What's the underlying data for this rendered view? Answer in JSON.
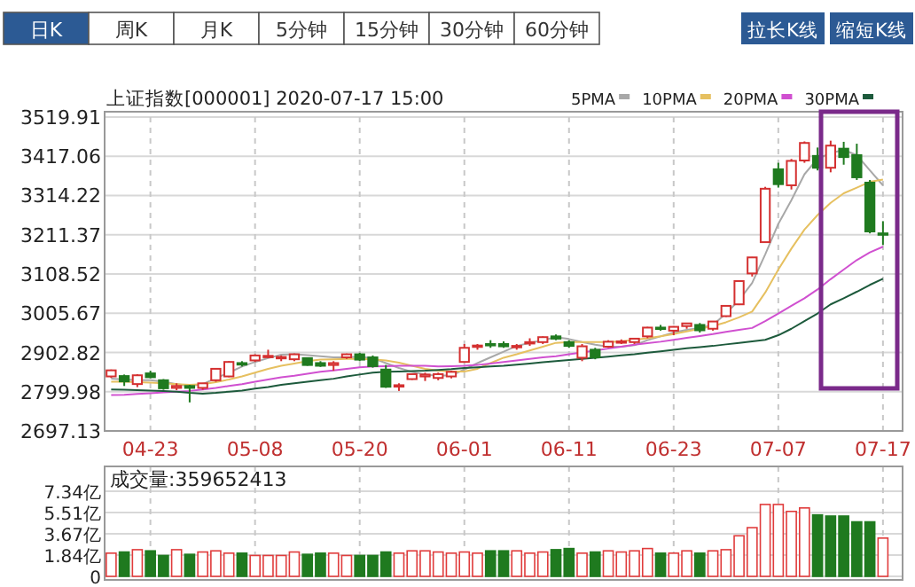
{
  "chart_data": [
    {
      "type": "other",
      "annotations": [
        "日K",
        "周K",
        "月K",
        "5分钟",
        "15分钟",
        "30分钟",
        "60分钟",
        "拉长K线",
        "缩短K线"
      ]
    },
    {
      "type": "candlestick",
      "title": "上证指数[000001] 2020-07-17 15:00",
      "legend": "top right",
      "grid": true,
      "categories": [
        null,
        null,
        null,
        "04-23",
        null,
        null,
        null,
        null,
        null,
        null,
        null,
        "05-08",
        null,
        null,
        null,
        null,
        null,
        null,
        null,
        "05-20",
        null,
        null,
        null,
        null,
        null,
        null,
        null,
        "06-01",
        null,
        null,
        null,
        null,
        null,
        null,
        null,
        "06-11",
        null,
        null,
        null,
        null,
        null,
        null,
        null,
        "06-23",
        null,
        null,
        null,
        null,
        null,
        null,
        null,
        "07-07",
        null,
        null,
        null,
        null,
        null,
        null,
        null,
        "07-17"
      ],
      "ohlc": [
        [
          2840,
          2858,
          2836,
          2856
        ],
        [
          2841,
          2845,
          2815,
          2827
        ],
        [
          2820,
          2846,
          2812,
          2843
        ],
        [
          2848,
          2855,
          2835,
          2838
        ],
        [
          2830,
          2833,
          2805,
          2809
        ],
        [
          2810,
          2822,
          2804,
          2815
        ],
        [
          2815,
          2818,
          2772,
          2810
        ],
        [
          2810,
          2823,
          2805,
          2822
        ],
        [
          2830,
          2862,
          2826,
          2860
        ],
        [
          2840,
          2880,
          2838,
          2878
        ],
        [
          2875,
          2880,
          2866,
          2871
        ],
        [
          2882,
          2898,
          2878,
          2895
        ],
        [
          2894,
          2910,
          2888,
          2894
        ],
        [
          2891,
          2895,
          2880,
          2891
        ],
        [
          2885,
          2900,
          2880,
          2898
        ],
        [
          2888,
          2890,
          2868,
          2870
        ],
        [
          2875,
          2880,
          2865,
          2868
        ],
        [
          2870,
          2880,
          2855,
          2875
        ],
        [
          2890,
          2900,
          2886,
          2898
        ],
        [
          2898,
          2902,
          2880,
          2884
        ],
        [
          2890,
          2895,
          2863,
          2867
        ],
        [
          2858,
          2870,
          2810,
          2813
        ],
        [
          2815,
          2822,
          2802,
          2817
        ],
        [
          2833,
          2848,
          2831,
          2846
        ],
        [
          2840,
          2850,
          2828,
          2845
        ],
        [
          2836,
          2850,
          2830,
          2846
        ],
        [
          2840,
          2855,
          2835,
          2852
        ],
        [
          2878,
          2925,
          2876,
          2915
        ],
        [
          2918,
          2925,
          2910,
          2921
        ],
        [
          2925,
          2935,
          2915,
          2923
        ],
        [
          2925,
          2932,
          2915,
          2919
        ],
        [
          2918,
          2925,
          2910,
          2920
        ],
        [
          2928,
          2940,
          2920,
          2930
        ],
        [
          2930,
          2945,
          2925,
          2943
        ],
        [
          2945,
          2950,
          2935,
          2939
        ],
        [
          2930,
          2935,
          2915,
          2920
        ],
        [
          2889,
          2925,
          2880,
          2919
        ],
        [
          2910,
          2915,
          2885,
          2890
        ],
        [
          2918,
          2935,
          2915,
          2931
        ],
        [
          2930,
          2937,
          2925,
          2932
        ],
        [
          2930,
          2940,
          2925,
          2939
        ],
        [
          2945,
          2970,
          2940,
          2968
        ],
        [
          2968,
          2975,
          2960,
          2965
        ],
        [
          2960,
          2972,
          2948,
          2970
        ],
        [
          2972,
          2980,
          2965,
          2979
        ],
        [
          2975,
          2980,
          2955,
          2961
        ],
        [
          2965,
          2985,
          2960,
          2984
        ],
        [
          2998,
          3026,
          2996,
          3025
        ],
        [
          3029,
          3091,
          3027,
          3090
        ],
        [
          3110,
          3153,
          3102,
          3152
        ],
        [
          3192,
          3337,
          3190,
          3332
        ],
        [
          3383,
          3400,
          3335,
          3344
        ],
        [
          3341,
          3410,
          3330,
          3405
        ],
        [
          3406,
          3456,
          3400,
          3452
        ],
        [
          3418,
          3440,
          3380,
          3387
        ],
        [
          3387,
          3458,
          3375,
          3445
        ],
        [
          3437,
          3455,
          3395,
          3415
        ],
        [
          3420,
          3450,
          3355,
          3362
        ],
        [
          3348,
          3355,
          3215,
          3220
        ],
        [
          3215,
          3247,
          3185,
          3214
        ]
      ],
      "series": [
        {
          "name": "5PMA",
          "type": "line",
          "color": "#a8a8a8",
          "values": [
            2834,
            2832,
            2830,
            2830,
            2826,
            2820,
            2815,
            2820,
            2835,
            2850,
            2866,
            2878,
            2888,
            2897,
            2898,
            2896,
            2893,
            2890,
            2890,
            2892,
            2888,
            2875,
            2862,
            2852,
            2845,
            2842,
            2843,
            2858,
            2875,
            2890,
            2905,
            2920,
            2928,
            2935,
            2943,
            2938,
            2930,
            2923,
            2918,
            2918,
            2922,
            2935,
            2945,
            2955,
            2962,
            2967,
            2975,
            3005,
            3040,
            3085,
            3160,
            3240,
            3302,
            3370,
            3411,
            3425,
            3434,
            3420,
            3380,
            3341
          ]
        },
        {
          "name": "10PMA",
          "type": "line",
          "color": "#e6c060",
          "values": [
            2826,
            2826,
            2825,
            2824,
            2822,
            2820,
            2818,
            2820,
            2825,
            2832,
            2840,
            2850,
            2860,
            2868,
            2874,
            2880,
            2884,
            2885,
            2886,
            2886,
            2885,
            2882,
            2876,
            2868,
            2860,
            2855,
            2853,
            2853,
            2860,
            2875,
            2889,
            2898,
            2908,
            2918,
            2928,
            2930,
            2930,
            2930,
            2930,
            2932,
            2936,
            2940,
            2945,
            2951,
            2958,
            2965,
            2972,
            2982,
            2995,
            3010,
            3060,
            3120,
            3175,
            3225,
            3263,
            3295,
            3320,
            3335,
            3350,
            3356
          ]
        },
        {
          "name": "20PMA",
          "type": "line",
          "color": "#d050d0",
          "values": [
            2791,
            2792,
            2794,
            2796,
            2798,
            2800,
            2802,
            2806,
            2810,
            2815,
            2820,
            2826,
            2832,
            2838,
            2842,
            2847,
            2852,
            2856,
            2860,
            2864,
            2866,
            2867,
            2868,
            2868,
            2868,
            2866,
            2867,
            2868,
            2870,
            2874,
            2878,
            2882,
            2886,
            2890,
            2893,
            2898,
            2903,
            2908,
            2913,
            2918,
            2923,
            2927,
            2931,
            2936,
            2941,
            2946,
            2951,
            2957,
            2962,
            2967,
            2985,
            3005,
            3025,
            3045,
            3068,
            3095,
            3120,
            3145,
            3165,
            3180
          ]
        },
        {
          "name": "30PMA",
          "type": "line",
          "color": "#1d5a3c",
          "values": [
            2806,
            2805,
            2804,
            2803,
            2802,
            2800,
            2797,
            2795,
            2797,
            2800,
            2803,
            2808,
            2812,
            2818,
            2822,
            2826,
            2830,
            2834,
            2840,
            2845,
            2850,
            2852,
            2853,
            2854,
            2855,
            2857,
            2859,
            2862,
            2864,
            2866,
            2868,
            2871,
            2874,
            2877,
            2880,
            2883,
            2886,
            2889,
            2892,
            2895,
            2898,
            2902,
            2906,
            2910,
            2914,
            2917,
            2920,
            2924,
            2928,
            2932,
            2936,
            2948,
            2965,
            2985,
            3005,
            3029,
            3045,
            3062,
            3080,
            3096
          ]
        }
      ],
      "ylim": [
        2697.13,
        3519.91
      ],
      "yticks": [
        2697.13,
        2799.98,
        2902.82,
        3005.67,
        3108.52,
        3211.37,
        3314.22,
        3417.06,
        3519.91
      ]
    },
    {
      "type": "bar",
      "tick_labels": "y",
      "grid": true,
      "annotations": [
        "成交量:359652413"
      ],
      "categories": [
        null,
        null,
        null,
        null,
        null,
        null,
        null,
        null,
        null,
        null,
        null,
        null,
        null,
        null,
        null,
        null,
        null,
        null,
        null,
        null,
        null,
        null,
        null,
        null,
        null,
        null,
        null,
        null,
        null,
        null,
        null,
        null,
        null,
        null,
        null,
        null,
        null,
        null,
        null,
        null,
        null,
        null,
        null,
        null,
        null,
        null,
        null,
        null,
        null,
        null,
        null,
        null,
        null,
        null,
        null,
        null,
        null,
        null,
        null,
        null
      ],
      "values": [
        2.0,
        2.1,
        2.3,
        2.2,
        1.8,
        2.3,
        1.9,
        2.1,
        2.2,
        2.0,
        2.0,
        1.8,
        1.8,
        1.8,
        2.1,
        1.9,
        2.0,
        2.0,
        1.8,
        1.8,
        1.8,
        2.1,
        2.0,
        2.2,
        2.2,
        2.1,
        2.0,
        2.1,
        2.0,
        2.2,
        2.2,
        2.2,
        2.0,
        2.1,
        2.3,
        2.4,
        2.0,
        2.1,
        2.2,
        2.1,
        2.2,
        2.4,
        2.0,
        2.0,
        2.2,
        2.0,
        2.2,
        2.3,
        3.5,
        4.2,
        6.2,
        6.2,
        5.6,
        5.9,
        5.3,
        5.2,
        5.2,
        4.7,
        4.7,
        3.3
      ],
      "colors": [
        "#e03c3c",
        "#1f7a1f",
        "#e03c3c",
        "#1f7a1f",
        "#1f7a1f",
        "#e03c3c",
        "#1f7a1f",
        "#e03c3c",
        "#e03c3c",
        "#e03c3c",
        "#1f7a1f",
        "#e03c3c",
        "#e03c3c",
        "#e03c3c",
        "#e03c3c",
        "#1f7a1f",
        "#1f7a1f",
        "#e03c3c",
        "#e03c3c",
        "#1f7a1f",
        "#1f7a1f",
        "#1f7a1f",
        "#e03c3c",
        "#e03c3c",
        "#e03c3c",
        "#e03c3c",
        "#e03c3c",
        "#e03c3c",
        "#e03c3c",
        "#1f7a1f",
        "#1f7a1f",
        "#e03c3c",
        "#e03c3c",
        "#e03c3c",
        "#1f7a1f",
        "#1f7a1f",
        "#e03c3c",
        "#1f7a1f",
        "#e03c3c",
        "#e03c3c",
        "#e03c3c",
        "#e03c3c",
        "#1f7a1f",
        "#e03c3c",
        "#e03c3c",
        "#1f7a1f",
        "#e03c3c",
        "#e03c3c",
        "#e03c3c",
        "#e03c3c",
        "#e03c3c",
        "#e03c3c",
        "#e03c3c",
        "#e03c3c",
        "#1f7a1f",
        "#1f7a1f",
        "#1f7a1f",
        "#1f7a1f",
        "#1f7a1f",
        "#e03c3c"
      ],
      "ylim": [
        0,
        7.34
      ],
      "yticks": [
        0,
        {
          "value": 1.84,
          "label": "1.84亿"
        },
        {
          "value": 3.67,
          "label": "3.67亿"
        },
        {
          "value": 5.51,
          "label": "5.51亿"
        },
        {
          "value": 7.34,
          "label": "7.34亿"
        }
      ]
    }
  ]
}
